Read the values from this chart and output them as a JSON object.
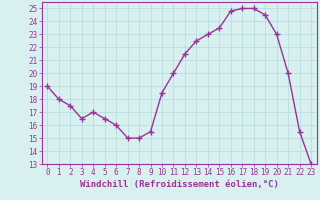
{
  "x": [
    0,
    1,
    2,
    3,
    4,
    5,
    6,
    7,
    8,
    9,
    10,
    11,
    12,
    13,
    14,
    15,
    16,
    17,
    18,
    19,
    20,
    21,
    22,
    23
  ],
  "y": [
    19,
    18,
    17.5,
    16.5,
    17,
    16.5,
    16,
    15,
    15,
    15.5,
    18.5,
    20,
    21.5,
    22.5,
    23,
    23.5,
    24.8,
    25,
    25,
    24.5,
    23,
    20,
    15.5,
    13
  ],
  "line_color": "#993399",
  "marker": "+",
  "marker_size": 4,
  "marker_lw": 1.0,
  "line_width": 1.0,
  "bg_color": "#d8f0f0",
  "grid_color": "#b8dede",
  "xlabel": "Windchill (Refroidissement éolien,°C)",
  "xlabel_fontsize": 6.5,
  "tick_fontsize": 5.5,
  "ylim": [
    13,
    25.5
  ],
  "xlim": [
    -0.5,
    23.5
  ],
  "yticks": [
    13,
    14,
    15,
    16,
    17,
    18,
    19,
    20,
    21,
    22,
    23,
    24,
    25
  ],
  "xticks": [
    0,
    1,
    2,
    3,
    4,
    5,
    6,
    7,
    8,
    9,
    10,
    11,
    12,
    13,
    14,
    15,
    16,
    17,
    18,
    19,
    20,
    21,
    22,
    23
  ]
}
